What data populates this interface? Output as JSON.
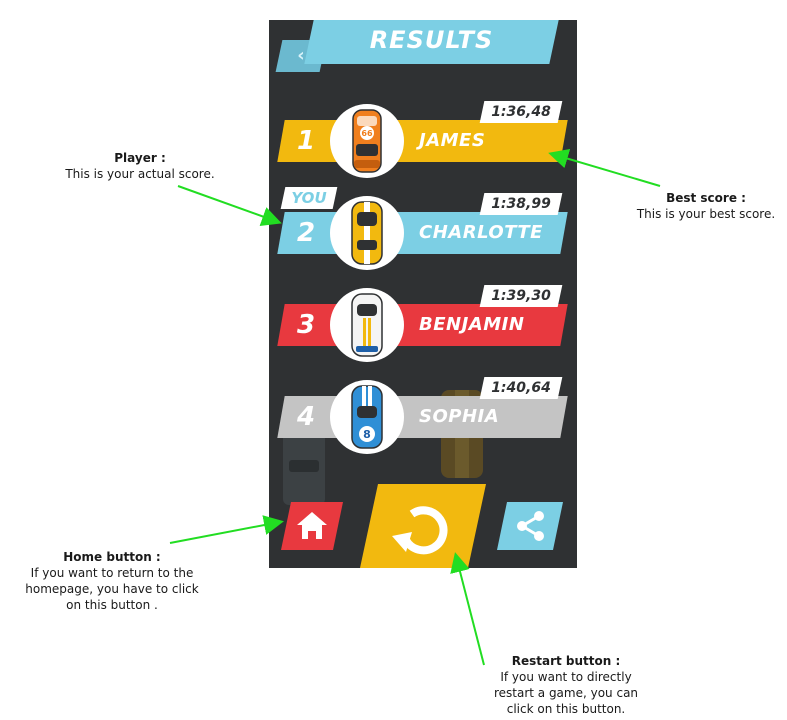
{
  "screen": {
    "title": "RESULTS",
    "you_label": "YOU",
    "icons": {
      "back": "chevron-left-icon",
      "home": "home-icon",
      "restart": "restart-icon",
      "share": "share-icon"
    }
  },
  "players": [
    {
      "rank": "1",
      "name": "JAMES",
      "time": "1:36,48",
      "color": "#f2b90f",
      "car": "orange-car",
      "car_number": "66"
    },
    {
      "rank": "2",
      "name": "CHARLOTTE",
      "time": "1:38,99",
      "color": "#7ccfe4",
      "car": "yellow-car",
      "car_number": ""
    },
    {
      "rank": "3",
      "name": "BENJAMIN",
      "time": "1:39,30",
      "color": "#e8393f",
      "car": "white-car",
      "car_number": ""
    },
    {
      "rank": "4",
      "name": "SOPHIA",
      "time": "1:40,64",
      "color": "#c4c4c4",
      "car": "blue-car",
      "car_number": "8"
    }
  ],
  "annotations": {
    "player": {
      "title": "Player :",
      "text": "This is your actual score."
    },
    "best_score": {
      "title": "Best score :",
      "text": "This is your best score."
    },
    "home": {
      "title": "Home button :",
      "line1": "If you want to return to the",
      "line2": "homepage, you have to click",
      "line3": "on this button ."
    },
    "restart": {
      "title": "Restart button :",
      "line1": "If you want to directly",
      "line2": "restart a game, you can",
      "line3": "click on this button."
    }
  },
  "colors": {
    "bg": "#2f3133",
    "accent_blue": "#7ccfe4",
    "accent_yellow": "#f2b90f",
    "accent_red": "#e8393f",
    "arrow": "#22dd22"
  }
}
